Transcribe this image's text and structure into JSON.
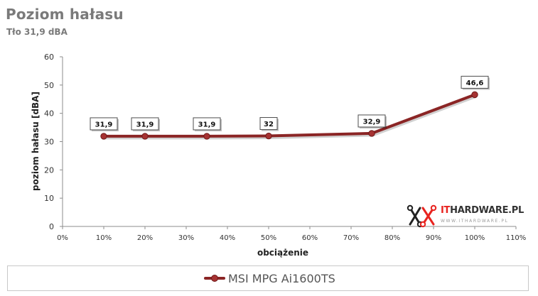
{
  "header": {
    "title": "Poziom hałasu",
    "subtitle": "Tło 31,9 dBA"
  },
  "logo": {
    "text_accent": "IT",
    "text_main": "HARDWARE.PL",
    "subtext": "WWW.ITHARDWARE.PL",
    "accent_color": "#e8231f",
    "main_color": "#333333"
  },
  "legend": {
    "label": "MSI MPG Ai1600TS"
  },
  "colors": {
    "series": "#8b2525",
    "marker": "#a63232",
    "axis_text": "#333333",
    "grid": "#d9d9d9"
  },
  "chart_data": {
    "type": "line",
    "title": "Poziom hałasu",
    "subtitle": "Tło 31,9 dBA",
    "xlabel": "obciążenie",
    "ylabel": "poziom hałasu [dBA]",
    "xlim": [
      0,
      110
    ],
    "ylim": [
      0,
      60
    ],
    "x_ticks": [
      "0%",
      "10%",
      "20%",
      "30%",
      "40%",
      "50%",
      "60%",
      "70%",
      "80%",
      "90%",
      "100%",
      "110%"
    ],
    "y_ticks": [
      "0",
      "10",
      "20",
      "30",
      "40",
      "50",
      "60"
    ],
    "grid": false,
    "legend_position": "bottom",
    "series": [
      {
        "name": "MSI MPG Ai1600TS",
        "x": [
          10,
          20,
          35,
          50,
          75,
          100
        ],
        "y": [
          31.9,
          31.9,
          31.9,
          32,
          32.9,
          46.6
        ],
        "labels": [
          "31,9",
          "31,9",
          "31,9",
          "32",
          "32,9",
          "46,6"
        ]
      }
    ]
  }
}
